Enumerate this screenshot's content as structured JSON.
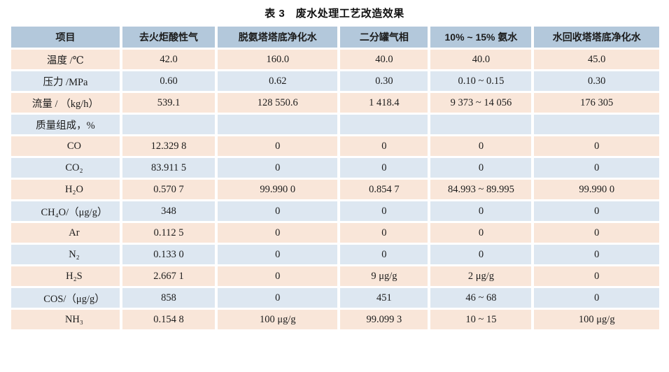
{
  "title": "表 3　废水处理工艺改造效果",
  "colors": {
    "header_bg": "#b3c8db",
    "row_peach": "#f9e6d9",
    "row_blue": "#dde7f1",
    "text": "#1c1c1c",
    "background": "#ffffff"
  },
  "table": {
    "columns": [
      "项目",
      "去火炬酸性气",
      "脱氨塔塔底净化水",
      "二分罐气相",
      "10% ~ 15% 氨水",
      "水回收塔塔底净化水"
    ],
    "rows": [
      {
        "label": "温度 /℃",
        "indent": false,
        "cells": [
          "42.0",
          "160.0",
          "40.0",
          "40.0",
          "45.0"
        ]
      },
      {
        "label": "压力 /MPa",
        "indent": false,
        "cells": [
          "0.60",
          "0.62",
          "0.30",
          "0.10 ~ 0.15",
          "0.30"
        ]
      },
      {
        "label": "流量 / （kg/h）",
        "indent": false,
        "cells": [
          "539.1",
          "128 550.6",
          "1 418.4",
          "9 373 ~ 14 056",
          "176 305"
        ]
      },
      {
        "label": "质量组成，%",
        "indent": false,
        "cells": [
          "",
          "",
          "",
          "",
          ""
        ]
      },
      {
        "label": "CO",
        "indent": true,
        "cells": [
          "12.329 8",
          "0",
          "0",
          "0",
          "0"
        ]
      },
      {
        "label": "CO₂",
        "indent": true,
        "cells": [
          "83.911 5",
          "0",
          "0",
          "0",
          "0"
        ]
      },
      {
        "label": "H₂O",
        "indent": true,
        "cells": [
          "0.570 7",
          "99.990 0",
          "0.854 7",
          "84.993 ~ 89.995",
          "99.990 0"
        ]
      },
      {
        "label": "CH₄O/（μg/g）",
        "indent": true,
        "cells": [
          "348",
          "0",
          "0",
          "0",
          "0"
        ]
      },
      {
        "label": "Ar",
        "indent": true,
        "cells": [
          "0.112 5",
          "0",
          "0",
          "0",
          "0"
        ]
      },
      {
        "label": "N₂",
        "indent": true,
        "cells": [
          "0.133 0",
          "0",
          "0",
          "0",
          "0"
        ]
      },
      {
        "label": "H₂S",
        "indent": true,
        "cells": [
          "2.667 1",
          "0",
          "9 μg/g",
          "2 μg/g",
          "0"
        ]
      },
      {
        "label": "COS/（μg/g）",
        "indent": true,
        "cells": [
          "858",
          "0",
          "451",
          "46 ~ 68",
          "0"
        ]
      },
      {
        "label": "NH₃",
        "indent": true,
        "cells": [
          "0.154 8",
          "100 μg/g",
          "99.099 3",
          "10 ~ 15",
          "100 μg/g"
        ]
      }
    ]
  }
}
